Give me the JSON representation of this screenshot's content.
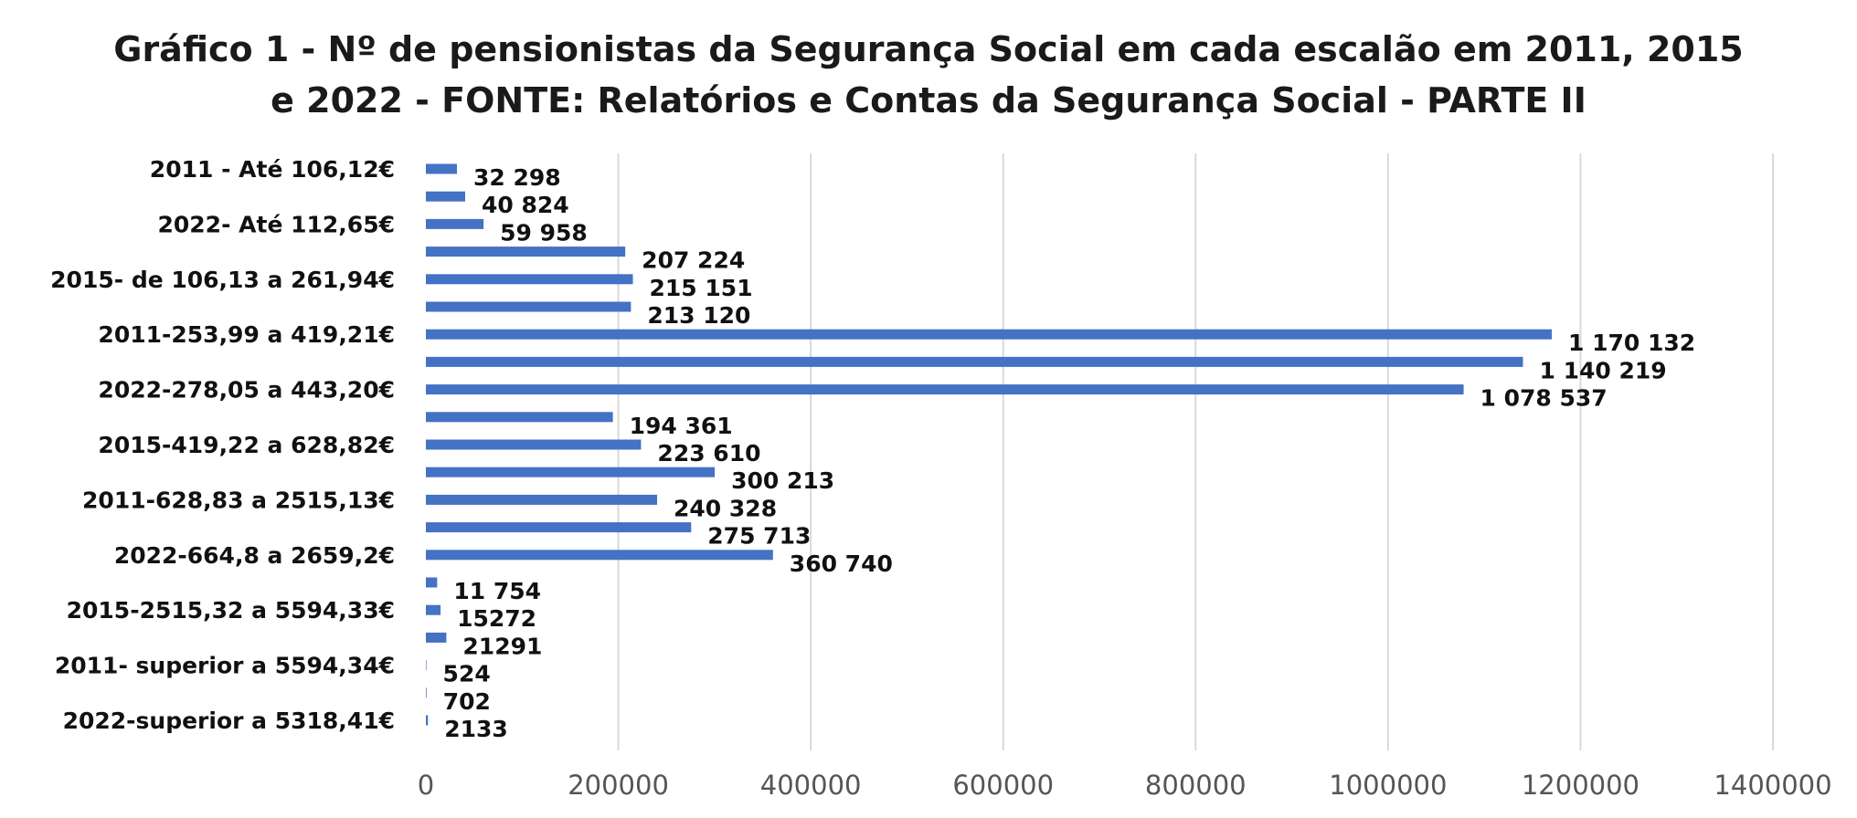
{
  "chart_data": {
    "type": "bar",
    "orientation": "horizontal",
    "title_lines": [
      "Gráfico 1 - Nº de pensionistas da Segurança Social  em cada escalão em 2011, 2015",
      "e 2022 - FONTE: Relatórios e Contas da Segurança Social - PARTE II"
    ],
    "categories": [
      "2011 - Até 106,12€",
      "",
      "2022- Até 112,65€",
      "",
      "2015- de 106,13 a 261,94€",
      "",
      "2011-253,99 a 419,21€",
      "",
      "2022-278,05 a 443,20€",
      "",
      "2015-419,22 a 628,82€",
      "",
      "2011-628,83 a 2515,13€",
      "",
      "2022-664,8 a 2659,2€",
      "",
      "2015-2515,32 a 5594,33€",
      "",
      "2011- superior a 5594,34€",
      "",
      "2022-superior a 5318,41€"
    ],
    "values": [
      32298,
      40824,
      59958,
      207224,
      215151,
      213120,
      1170132,
      1140219,
      1078537,
      194361,
      223610,
      300213,
      240328,
      275713,
      360740,
      11754,
      15272,
      21291,
      524,
      702,
      2133
    ],
    "data_labels": [
      "32 298",
      "40 824",
      "59 958",
      "207 224",
      "215 151",
      "213 120",
      "1 170 132",
      "1 140 219",
      "1 078 537",
      "194 361",
      "223 610",
      "300 213",
      "240 328",
      "275 713",
      "360 740",
      "11 754",
      "15272",
      "21291",
      "524",
      "702",
      "2133"
    ],
    "xlim": [
      0,
      1400000
    ],
    "xticks": [
      0,
      200000,
      400000,
      600000,
      800000,
      1000000,
      1200000,
      1400000
    ],
    "xtick_labels": [
      "0",
      "200000",
      "400000",
      "600000",
      "800000",
      "1000000",
      "1200000",
      "1400000"
    ],
    "grid": "vertical",
    "legend": "none",
    "bar_color": "#4472c4"
  }
}
